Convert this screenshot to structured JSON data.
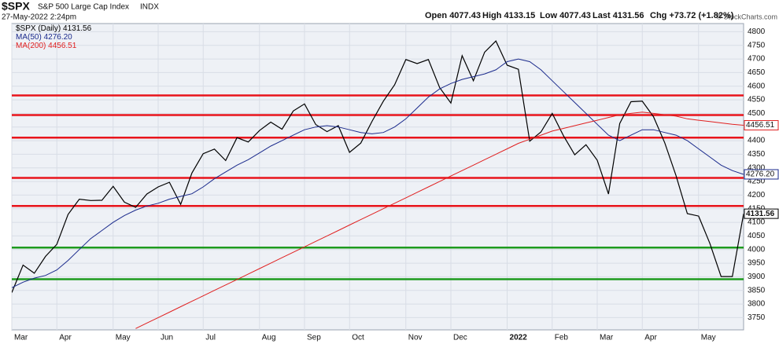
{
  "chart_data": {
    "type": "line",
    "symbol": "$SPX",
    "title": "S&P 500 Large Cap Index",
    "exchange": "INDX",
    "subtitle": "27-May-2022 2:24pm",
    "stats": [
      {
        "label": "Open",
        "value": "4077.43"
      },
      {
        "label": "High",
        "value": "4133.15"
      },
      {
        "label": "Low",
        "value": "4077.43"
      },
      {
        "label": "Last",
        "value": "4131.56"
      },
      {
        "label": "Chg",
        "value": "+73.72 (+1.82%)"
      }
    ],
    "credit": "© StockCharts.com",
    "categories": [
      "Mar",
      null,
      null,
      null,
      "Apr",
      null,
      null,
      null,
      null,
      "May",
      null,
      null,
      null,
      "Jun",
      null,
      null,
      null,
      "Jul",
      null,
      null,
      null,
      null,
      "Aug",
      null,
      null,
      null,
      "Sep",
      null,
      null,
      null,
      "Oct",
      null,
      null,
      null,
      null,
      "Nov",
      null,
      null,
      null,
      "Dec",
      null,
      null,
      null,
      null,
      "2022",
      null,
      null,
      null,
      "Feb",
      null,
      null,
      null,
      "Mar",
      null,
      null,
      null,
      "Apr",
      null,
      null,
      null,
      null,
      "May",
      null,
      null,
      null,
      null
    ],
    "series": [
      {
        "name": "$SPX (Daily)",
        "last_label": "4131.56",
        "color": "#000000",
        "values": [
          3842,
          3943,
          3913,
          3975,
          4019,
          4129,
          4185,
          4180,
          4181,
          4232,
          4174,
          4155,
          4204,
          4230,
          4247,
          4166,
          4281,
          4352,
          4369,
          4327,
          4411,
          4395,
          4437,
          4468,
          4442,
          4509,
          4535,
          4459,
          4433,
          4455,
          4357,
          4391,
          4471,
          4545,
          4605,
          4698,
          4683,
          4698,
          4595,
          4538,
          4712,
          4620,
          4725,
          4766,
          4677,
          4662,
          4398,
          4432,
          4500,
          4418,
          4348,
          4385,
          4328,
          4204,
          4463,
          4543,
          4545,
          4488,
          4392,
          4271,
          4132,
          4123,
          4023,
          3901,
          3901,
          4131.56
        ]
      },
      {
        "name": "MA(50)",
        "last_label": "4276.20",
        "color": "#1a2a8c",
        "values": [
          3860,
          3880,
          3895,
          3905,
          3925,
          3960,
          4000,
          4040,
          4070,
          4100,
          4125,
          4145,
          4160,
          4170,
          4185,
          4195,
          4205,
          4230,
          4260,
          4285,
          4310,
          4330,
          4355,
          4380,
          4400,
          4420,
          4440,
          4450,
          4455,
          4450,
          4440,
          4430,
          4425,
          4430,
          4450,
          4480,
          4520,
          4560,
          4590,
          4610,
          4625,
          4635,
          4645,
          4660,
          4690,
          4700,
          4690,
          4660,
          4620,
          4580,
          4540,
          4500,
          4460,
          4420,
          4400,
          4420,
          4440,
          4440,
          4430,
          4420,
          4400,
          4370,
          4340,
          4310,
          4290,
          4276.2
        ]
      },
      {
        "name": "MA(200)",
        "last_label": "4456.51",
        "color": "#e02020",
        "values": [
          null,
          null,
          null,
          null,
          null,
          null,
          null,
          null,
          null,
          null,
          null,
          3710,
          3730,
          3750,
          3770,
          3790,
          3810,
          3830,
          3850,
          3870,
          3890,
          3910,
          3930,
          3950,
          3970,
          3990,
          4010,
          4030,
          4050,
          4070,
          4090,
          4110,
          4130,
          4150,
          4170,
          4190,
          4210,
          4230,
          4250,
          4270,
          4290,
          4310,
          4330,
          4350,
          4370,
          4390,
          4405,
          4420,
          4435,
          4445,
          4455,
          4465,
          4475,
          4485,
          4495,
          4500,
          4505,
          4500,
          4495,
          4490,
          4480,
          4475,
          4470,
          4465,
          4460,
          4456.51
        ]
      }
    ],
    "levels": [
      {
        "value": 4566,
        "color": "#e8141b"
      },
      {
        "value": 4494,
        "color": "#e8141b"
      },
      {
        "value": 4411,
        "color": "#e8141b"
      },
      {
        "value": 4263,
        "color": "#e8141b"
      },
      {
        "value": 4160,
        "color": "#e8141b"
      },
      {
        "value": 4007,
        "color": "#1e9a1e"
      },
      {
        "value": 3891,
        "color": "#1e9a1e"
      }
    ],
    "ylim": [
      3705,
      4830
    ],
    "yticks": [
      3750,
      3800,
      3850,
      3900,
      3950,
      4000,
      4050,
      4100,
      4150,
      4200,
      4250,
      4300,
      4350,
      4400,
      4450,
      4500,
      4550,
      4600,
      4650,
      4700,
      4750,
      4800
    ],
    "grid": true
  }
}
